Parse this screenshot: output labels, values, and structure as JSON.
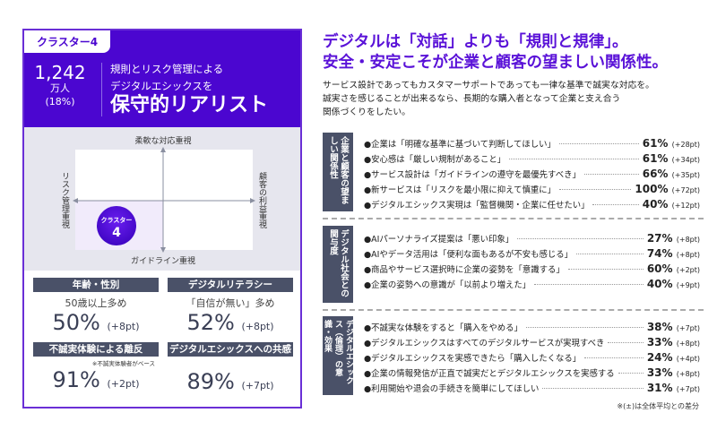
{
  "card": {
    "tag": "クラスター4",
    "count": "1,242",
    "unit": "万人",
    "pct": "(18%)",
    "subtitle1": "規則とリスク管理による",
    "subtitle2": "デジタルエシックスを",
    "title": "保守的リアリスト"
  },
  "map": {
    "top": "柔軟な対応重視",
    "bottom": "ガイドライン重視",
    "left": "リスク管理重視",
    "right": "顧客の利益重視",
    "bubble_label": "クラスター",
    "bubble_num": "4",
    "quadrant": "bottom-left"
  },
  "stats": [
    {
      "head": "年齢・性別",
      "desc": "50歳以上多め",
      "value": "50%",
      "diff": "(+8pt)",
      "note": ""
    },
    {
      "head": "デジタルリテラシー",
      "desc": "「自信が無い」多め",
      "value": "52%",
      "diff": "(+8pt)",
      "note": ""
    },
    {
      "head": "不誠実体験による離反",
      "desc": "",
      "value": "91%",
      "diff": "(+2pt)",
      "note": "※不誠実体験者がベース"
    },
    {
      "head": "デジタルエシックスへの共感",
      "desc": "",
      "value": "89%",
      "diff": "(+7pt)",
      "note": ""
    }
  ],
  "headline": {
    "line1": "デジタルは「対話」よりも「規則と規律」。",
    "line2": "安全・安定こそが企業と顧客の望ましい関係性。"
  },
  "body": {
    "line1": "サービス設計であってもカスタマーサポートであっても一律な基準で誠実な対応を。",
    "line2": "誠実さを感じることが出来るなら、長期的な購入者となって企業と支え合う",
    "line3": "関係づくりをしたい。"
  },
  "sections": [
    {
      "label": "企業と顧客の望ましい関係性",
      "items": [
        {
          "text": "●企業は「明確な基準に基づいて判断してほしい」",
          "value": "61%",
          "diff": "(+28pt)"
        },
        {
          "text": "●安心感は「厳しい規制があること」",
          "value": "61%",
          "diff": "(+34pt)"
        },
        {
          "text": "●サービス設計は「ガイドラインの遵守を最優先すべき」",
          "value": "66%",
          "diff": "(+35pt)"
        },
        {
          "text": "●新サービスは「リスクを最小限に抑えて慎重に」",
          "value": "100%",
          "diff": "(+72pt)"
        },
        {
          "text": "●デジタルエシックス実現は「監督機関・企業に任せたい」",
          "value": "40%",
          "diff": "(+12pt)"
        }
      ]
    },
    {
      "label": "デジタル社会との関与度",
      "items": [
        {
          "text": "●AIパーソナライズ提案は「悪い印象」",
          "value": "27%",
          "diff": "(+8pt)"
        },
        {
          "text": "●AIやデータ活用は「便利な面もあるが不安も感じる」",
          "value": "74%",
          "diff": "(+8pt)"
        },
        {
          "text": "●商品やサービス選択時に企業の姿勢を「意識する」",
          "value": "60%",
          "diff": "(+2pt)"
        },
        {
          "text": "●企業の姿勢への意識が「以前より増えた」",
          "value": "40%",
          "diff": "(+9pt)"
        }
      ]
    },
    {
      "label": "デジタルエシックス（倫理）の意識・効果",
      "items": [
        {
          "text": "●不誠実な体験をすると「購入をやめる」",
          "value": "38%",
          "diff": "(+7pt)"
        },
        {
          "text": "●デジタルエシックスはすべてのデジタルサービスが実現すべき",
          "value": "33%",
          "diff": "(+8pt)"
        },
        {
          "text": "●デジタルエシックスを実感できたら「購入したくなる」",
          "value": "24%",
          "diff": "(+4pt)"
        },
        {
          "text": "●企業の情報発信が正直で誠実だとデジタルエシックスを実感する",
          "value": "33%",
          "diff": "(+8pt)"
        },
        {
          "text": "●利用開始や退会の手続きを簡単にしてほしい",
          "value": "31%",
          "diff": "(+7pt)"
        }
      ]
    }
  ],
  "footnote": "※(±)は全体平均との差分"
}
